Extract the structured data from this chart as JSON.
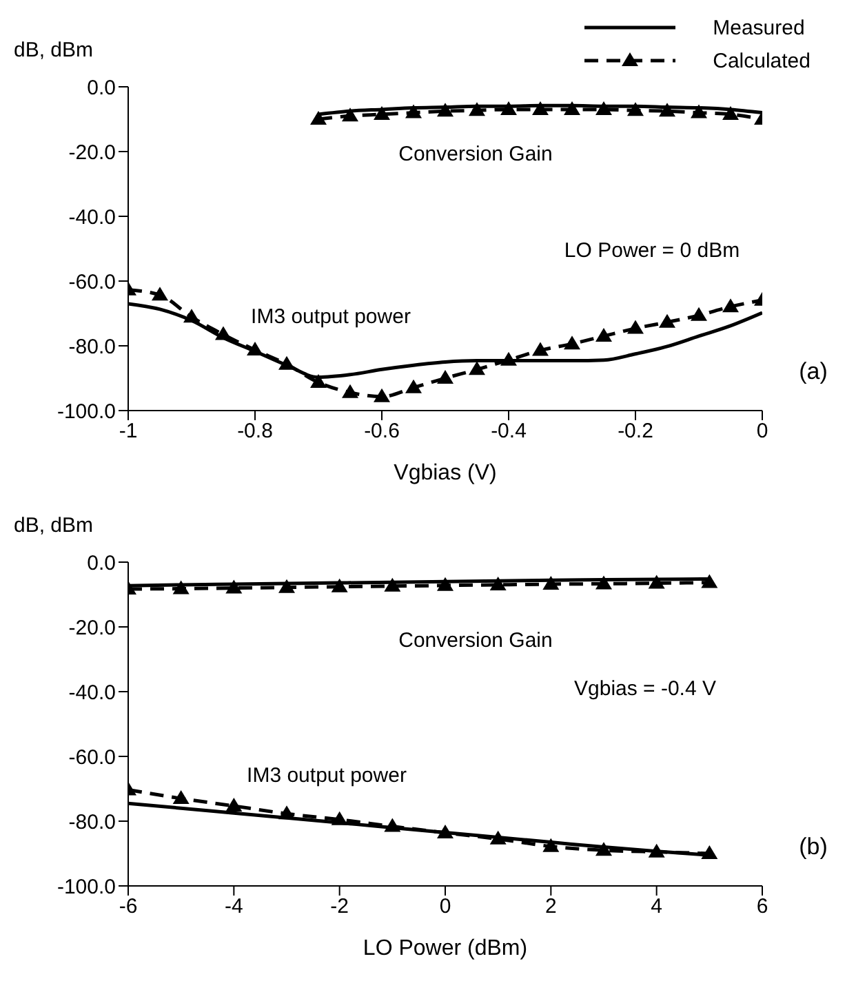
{
  "chart_data": [
    {
      "type": "line",
      "xlabel": "Vgbias (V)",
      "ylabel": "dB, dBm",
      "xlim": [
        -1,
        0
      ],
      "xticks": [
        -1,
        -0.8,
        -0.6,
        -0.4,
        -0.2,
        0
      ],
      "ylim": [
        -100,
        0
      ],
      "yticks": [
        {
          "value": 0,
          "label": "0.0"
        },
        {
          "value": -20,
          "label": "-20.0"
        },
        {
          "value": -40,
          "label": "-40.0"
        },
        {
          "value": -60,
          "label": "-60.0"
        },
        {
          "value": -80,
          "label": "-80.0"
        },
        {
          "value": -100,
          "label": "-100.0"
        }
      ],
      "legend": "top right",
      "series": [
        {
          "name": "Measured",
          "type": "line",
          "color": "#000000",
          "marker": "none",
          "line_style": "solid",
          "x": [
            -0.7,
            -0.65,
            -0.6,
            -0.55,
            -0.5,
            -0.45,
            -0.4,
            -0.35,
            -0.3,
            -0.25,
            -0.2,
            -0.15,
            -0.1,
            -0.05,
            0
          ],
          "values": [
            -8.5,
            -7.5,
            -7,
            -6.5,
            -6.3,
            -6,
            -6,
            -5.8,
            -5.8,
            -6,
            -6,
            -6.3,
            -6.5,
            -7,
            -8
          ]
        },
        {
          "type": "line",
          "color": "#000000",
          "marker": "none",
          "line_style": "solid",
          "x": [
            -1,
            -0.95,
            -0.9,
            -0.85,
            -0.8,
            -0.75,
            -0.7,
            -0.65,
            -0.6,
            -0.55,
            -0.5,
            -0.45,
            -0.4,
            -0.35,
            -0.3,
            -0.25,
            -0.2,
            -0.15,
            -0.1,
            -0.05,
            0
          ],
          "values": [
            -67,
            -68.7,
            -72.2,
            -77.5,
            -81.7,
            -86,
            -89.7,
            -88.9,
            -87.3,
            -86,
            -85,
            -84.6,
            -84.6,
            -84.6,
            -84.6,
            -84.4,
            -82.5,
            -80.2,
            -77,
            -73.8,
            -69.8
          ]
        },
        {
          "name": "Calculated",
          "type": "line",
          "color": "#000000",
          "marker": "triangle",
          "line_style": "dashed",
          "x": [
            -0.7,
            -0.65,
            -0.6,
            -0.55,
            -0.5,
            -0.45,
            -0.4,
            -0.35,
            -0.3,
            -0.25,
            -0.2,
            -0.15,
            -0.1,
            -0.05,
            0
          ],
          "values": [
            -10,
            -9,
            -8.5,
            -8,
            -7.5,
            -7.3,
            -7,
            -7,
            -7,
            -7,
            -7.3,
            -7.5,
            -8,
            -8.5,
            -10
          ]
        },
        {
          "type": "line",
          "color": "#000000",
          "marker": "triangle",
          "line_style": "dashed",
          "x": [
            -1,
            -0.95,
            -0.9,
            -0.85,
            -0.8,
            -0.75,
            -0.7,
            -0.65,
            -0.6,
            -0.55,
            -0.5,
            -0.45,
            -0.4,
            -0.35,
            -0.3,
            -0.25,
            -0.2,
            -0.15,
            -0.1,
            -0.05,
            0
          ],
          "values": [
            -62.7,
            -64.3,
            -71.1,
            -76.5,
            -81.3,
            -85.7,
            -91.3,
            -94.4,
            -95.7,
            -92.9,
            -90,
            -87.3,
            -84.4,
            -81.4,
            -79.4,
            -77,
            -74.6,
            -72.7,
            -70.6,
            -67.9,
            -65.9
          ]
        }
      ],
      "annotations": [
        "Conversion Gain",
        "IM3 output power",
        "LO Power = 0 dBm",
        "(a)"
      ]
    },
    {
      "type": "line",
      "xlabel": "LO Power (dBm)",
      "ylabel": "dB, dBm",
      "xlim": [
        -6,
        6
      ],
      "xticks": [
        -6,
        -4,
        -2,
        0,
        2,
        4,
        6
      ],
      "ylim": [
        -100,
        0
      ],
      "yticks": [
        {
          "value": 0,
          "label": "0.0"
        },
        {
          "value": -20,
          "label": "-20.0"
        },
        {
          "value": -40,
          "label": "-40.0"
        },
        {
          "value": -60,
          "label": "-60.0"
        },
        {
          "value": -80,
          "label": "-80.0"
        },
        {
          "value": -100,
          "label": "-100.0"
        }
      ],
      "series": [
        {
          "type": "line",
          "color": "#000000",
          "marker": "none",
          "line_style": "solid",
          "x": [
            -6,
            -5,
            -4,
            -3,
            -2,
            -1,
            0,
            1,
            2,
            3,
            4,
            5
          ],
          "values": [
            -7.3,
            -7,
            -6.8,
            -6.6,
            -6.4,
            -6.2,
            -6,
            -5.8,
            -5.6,
            -5.4,
            -5.3,
            -5.2
          ]
        },
        {
          "type": "line",
          "color": "#000000",
          "marker": "none",
          "line_style": "solid",
          "x": [
            -6,
            -5,
            -4,
            -3,
            -2,
            -1,
            0,
            1,
            2,
            3,
            4,
            5
          ],
          "values": [
            -74.5,
            -76,
            -77.5,
            -79,
            -80.5,
            -82,
            -83.5,
            -85,
            -86.5,
            -88,
            -89.3,
            -90.5
          ]
        },
        {
          "type": "line",
          "color": "#000000",
          "marker": "triangle",
          "line_style": "dashed",
          "x": [
            -6,
            -5,
            -4,
            -3,
            -2,
            -1,
            0,
            1,
            2,
            3,
            4,
            5
          ],
          "values": [
            -8.3,
            -8.2,
            -8,
            -7.8,
            -7.6,
            -7.4,
            -7.2,
            -7,
            -6.8,
            -6.7,
            -6.5,
            -6.3
          ]
        },
        {
          "type": "line",
          "color": "#000000",
          "marker": "triangle",
          "line_style": "dashed",
          "x": [
            -6,
            -5,
            -4,
            -3,
            -2,
            -1,
            0,
            1,
            2,
            3,
            4,
            5
          ],
          "values": [
            -70.3,
            -73,
            -75.3,
            -77.7,
            -79.5,
            -81.6,
            -83.6,
            -85.5,
            -87.8,
            -89,
            -89.5,
            -90
          ]
        }
      ],
      "annotations": [
        "Conversion Gain",
        "IM3 output power",
        "Vgbias = -0.4 V",
        "(b)"
      ]
    }
  ]
}
